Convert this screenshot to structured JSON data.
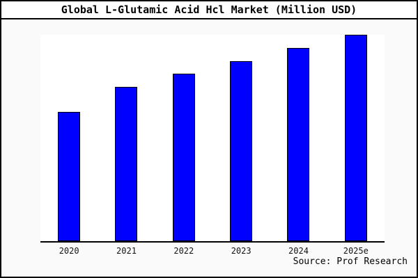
{
  "title": "Global L-Glutamic Acid Hcl Market (Million USD)",
  "source": "Source: Prof Research",
  "colors": {
    "bar_fill": "#0000fe",
    "bar_border": "#000000",
    "figure_background": "#fafafa",
    "plot_background": "#ffffff",
    "frame": "#000000",
    "title_background": "#ffffff"
  },
  "chart_data": {
    "type": "bar",
    "title": "Global L-Glutamic Acid Hcl Market (Million USD)",
    "categories": [
      "2020",
      "2021",
      "2022",
      "2023",
      "2024",
      "2025e"
    ],
    "values": [
      62.5,
      74.9,
      81.3,
      87.3,
      93.6,
      100
    ],
    "values_note": "Relative bar heights as % of tallest bar (2025e); no numeric y-axis is shown in the chart",
    "xlabel": "",
    "ylabel": "",
    "ylim": [
      0,
      100
    ],
    "grid": false,
    "legend": null,
    "bar_color": "#0000fe",
    "source_annotation": "Source: Prof Research"
  }
}
